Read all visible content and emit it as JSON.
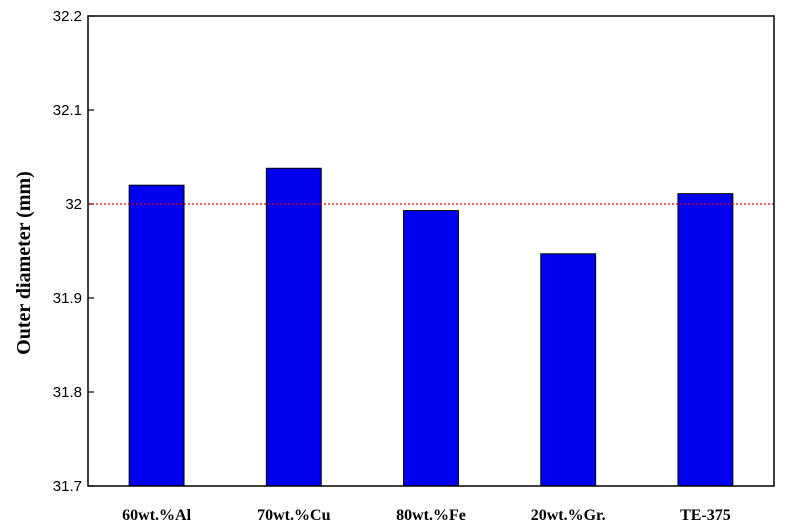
{
  "chart_data": {
    "type": "bar",
    "title": "",
    "xlabel": "",
    "ylabel": "Outer diameter (mm)",
    "categories": [
      "60wt.%Al",
      "70wt.%Cu",
      "80wt.%Fe",
      "20wt.%Gr.",
      "TE-375"
    ],
    "values": [
      32.02,
      32.038,
      31.993,
      31.947,
      32.011
    ],
    "ylim": [
      31.7,
      32.2
    ],
    "yticks": [
      "31.7",
      "31.8",
      "31.9",
      "32",
      "32.1",
      "32.2"
    ],
    "reference_line": {
      "value": 32.0,
      "color": "#e00000",
      "style": "dotted"
    },
    "grid": false,
    "legend": "none",
    "bar_color": "#0000ee"
  }
}
